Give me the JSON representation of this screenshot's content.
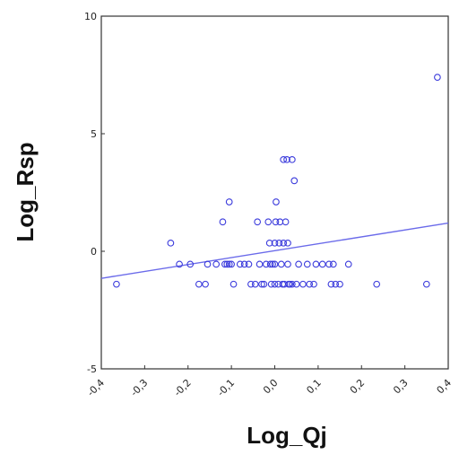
{
  "chart_data": {
    "type": "scatter",
    "title": "",
    "xlabel": "Log_Qj",
    "ylabel": "Log_Rsp",
    "xlim": [
      -0.4,
      0.4
    ],
    "ylim": [
      -5,
      10
    ],
    "x_ticks": [
      -0.4,
      -0.3,
      -0.2,
      -0.1,
      0.0,
      0.1,
      0.2,
      0.3,
      0.4
    ],
    "x_tick_labels": [
      "-0,4",
      "-0,3",
      "-0,2",
      "-0,1",
      "0,0",
      "0,1",
      "0,2",
      "0,3",
      "0,4"
    ],
    "y_ticks": [
      -5,
      0,
      5,
      10
    ],
    "y_tick_labels": [
      "-5",
      "0",
      "5",
      "10"
    ],
    "grid": false,
    "marker_color": "#3b3bdc",
    "line_color": "#6b6bea",
    "series": [
      {
        "points": [
          [
            -0.365,
            -1.4
          ],
          [
            -0.24,
            0.35
          ],
          [
            -0.22,
            -0.55
          ],
          [
            -0.195,
            -0.55
          ],
          [
            -0.175,
            -1.4
          ],
          [
            -0.16,
            -1.4
          ],
          [
            -0.155,
            -0.55
          ],
          [
            -0.135,
            -0.55
          ],
          [
            -0.12,
            1.25
          ],
          [
            -0.115,
            -0.55
          ],
          [
            -0.11,
            -0.55
          ],
          [
            -0.105,
            -0.55
          ],
          [
            -0.1,
            -0.55
          ],
          [
            -0.105,
            2.1
          ],
          [
            -0.095,
            -1.4
          ],
          [
            -0.08,
            -0.55
          ],
          [
            -0.07,
            -0.55
          ],
          [
            -0.06,
            -0.55
          ],
          [
            -0.055,
            -1.4
          ],
          [
            -0.045,
            -1.4
          ],
          [
            -0.04,
            1.25
          ],
          [
            -0.035,
            -0.55
          ],
          [
            -0.03,
            -1.4
          ],
          [
            -0.025,
            -1.4
          ],
          [
            -0.02,
            -0.55
          ],
          [
            -0.015,
            1.25
          ],
          [
            -0.01,
            -0.55
          ],
          [
            -0.012,
            0.35
          ],
          [
            -0.008,
            -1.4
          ],
          [
            -0.005,
            -0.55
          ],
          [
            0.0,
            -0.55
          ],
          [
            0.0,
            0.35
          ],
          [
            0.0,
            -1.4
          ],
          [
            0.002,
            1.25
          ],
          [
            0.003,
            2.1
          ],
          [
            0.008,
            -1.4
          ],
          [
            0.01,
            0.35
          ],
          [
            0.012,
            1.25
          ],
          [
            0.015,
            -0.55
          ],
          [
            0.018,
            -1.4
          ],
          [
            0.02,
            3.9
          ],
          [
            0.02,
            0.35
          ],
          [
            0.022,
            -1.4
          ],
          [
            0.025,
            1.25
          ],
          [
            0.028,
            3.9
          ],
          [
            0.03,
            -0.55
          ],
          [
            0.03,
            0.35
          ],
          [
            0.032,
            -1.4
          ],
          [
            0.035,
            -1.4
          ],
          [
            0.04,
            3.9
          ],
          [
            0.04,
            -1.4
          ],
          [
            0.045,
            3.0
          ],
          [
            0.05,
            -1.4
          ],
          [
            0.055,
            -0.55
          ],
          [
            0.065,
            -1.4
          ],
          [
            0.075,
            -0.55
          ],
          [
            0.08,
            -1.4
          ],
          [
            0.09,
            -1.4
          ],
          [
            0.095,
            -0.55
          ],
          [
            0.11,
            -0.55
          ],
          [
            0.125,
            -0.55
          ],
          [
            0.13,
            -1.4
          ],
          [
            0.135,
            -0.55
          ],
          [
            0.14,
            -1.4
          ],
          [
            0.15,
            -1.4
          ],
          [
            0.17,
            -0.55
          ],
          [
            0.235,
            -1.4
          ],
          [
            0.35,
            -1.4
          ],
          [
            0.375,
            7.4
          ]
        ]
      }
    ],
    "trendline": {
      "x": [
        -0.4,
        0.4
      ],
      "y": [
        -1.15,
        1.2
      ]
    }
  }
}
